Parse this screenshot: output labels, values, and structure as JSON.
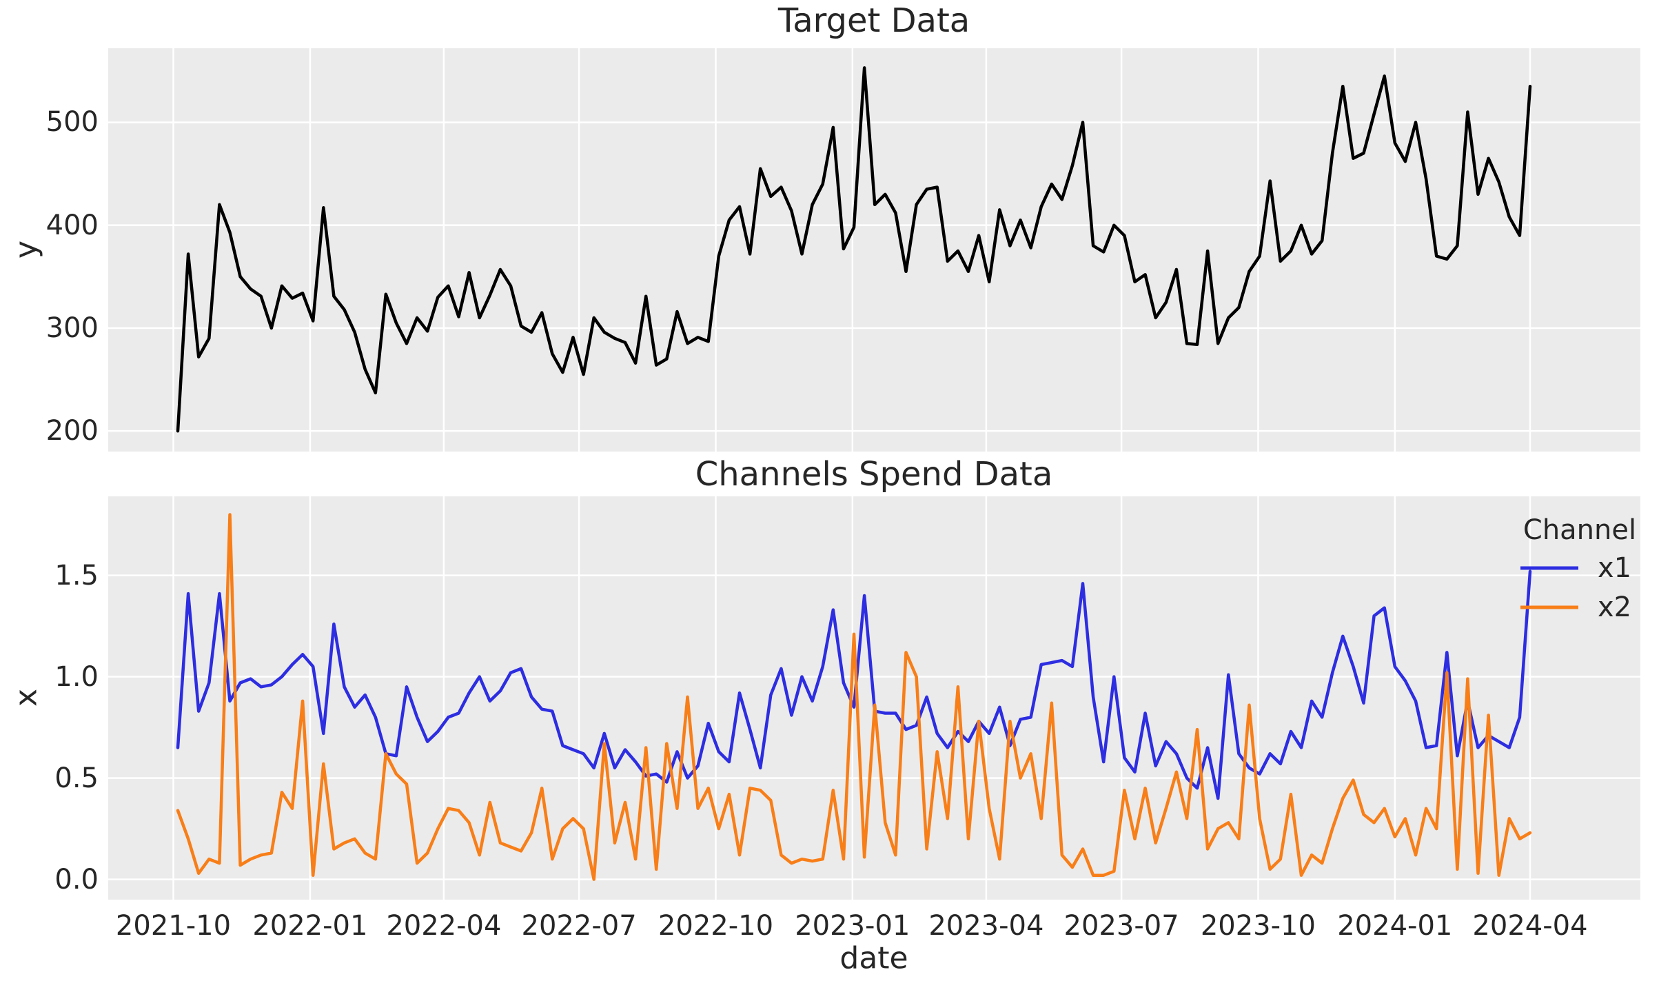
{
  "figure": {
    "background": "#ffffff",
    "axes_background": "#ebebeb",
    "grid_color": "#ffffff",
    "text_color": "#262626"
  },
  "chart_data": [
    {
      "type": "line",
      "title": "Target Data",
      "xlabel": "",
      "ylabel": "y",
      "grid": true,
      "x_start_date": "2021-10-04",
      "x_freq_days": 7,
      "n_points": 131,
      "ylim": [
        180,
        572
      ],
      "yticks": [
        {
          "value": 200,
          "label": "200"
        },
        {
          "value": 300,
          "label": "300"
        },
        {
          "value": 400,
          "label": "400"
        },
        {
          "value": 500,
          "label": "500"
        }
      ],
      "series": [
        {
          "name": "y",
          "color": "#000000",
          "values": [
            200,
            372,
            272,
            290,
            420,
            393,
            350,
            338,
            331,
            300,
            341,
            329,
            334,
            307,
            417,
            331,
            318,
            296,
            260,
            237,
            333,
            305,
            285,
            310,
            297,
            330,
            341,
            311,
            354,
            310,
            332,
            357,
            341,
            302,
            296,
            315,
            275,
            257,
            291,
            255,
            310,
            296,
            290,
            286,
            266,
            331,
            264,
            270,
            316,
            285,
            291,
            287,
            370,
            405,
            418,
            372,
            455,
            428,
            437,
            414,
            372,
            420,
            440,
            495,
            377,
            398,
            553,
            420,
            430,
            412,
            355,
            420,
            435,
            437,
            365,
            375,
            355,
            390,
            345,
            415,
            380,
            405,
            378,
            418,
            440,
            425,
            458,
            500,
            380,
            374,
            400,
            390,
            345,
            352,
            310,
            325,
            357,
            285,
            284,
            375,
            285,
            310,
            320,
            355,
            370,
            443,
            365,
            375,
            400,
            372,
            385,
            470,
            535,
            465,
            470,
            508,
            545,
            480,
            462,
            500,
            445,
            370,
            367,
            380,
            510,
            430,
            465,
            442,
            408,
            390,
            535
          ]
        }
      ]
    },
    {
      "type": "line",
      "title": "Channels Spend Data",
      "xlabel": "date",
      "ylabel": "x",
      "grid": true,
      "legend_title": "Channel",
      "legend_position": "upper right",
      "x_start_date": "2021-10-04",
      "x_freq_days": 7,
      "n_points": 131,
      "ylim": [
        -0.1,
        1.89
      ],
      "yticks": [
        {
          "value": 0.0,
          "label": "0.0"
        },
        {
          "value": 0.5,
          "label": "0.5"
        },
        {
          "value": 1.0,
          "label": "1.0"
        },
        {
          "value": 1.5,
          "label": "1.5"
        }
      ],
      "xticks": [
        {
          "date": "2021-10-01",
          "label": "2021-10"
        },
        {
          "date": "2022-01-01",
          "label": "2022-01"
        },
        {
          "date": "2022-04-01",
          "label": "2022-04"
        },
        {
          "date": "2022-07-01",
          "label": "2022-07"
        },
        {
          "date": "2022-10-01",
          "label": "2022-10"
        },
        {
          "date": "2023-01-01",
          "label": "2023-01"
        },
        {
          "date": "2023-04-01",
          "label": "2023-04"
        },
        {
          "date": "2023-07-01",
          "label": "2023-07"
        },
        {
          "date": "2023-10-01",
          "label": "2023-10"
        },
        {
          "date": "2024-01-01",
          "label": "2024-01"
        },
        {
          "date": "2024-04-01",
          "label": "2024-04"
        }
      ],
      "series": [
        {
          "name": "x1",
          "color": "#2d2de1",
          "values": [
            0.65,
            1.41,
            0.83,
            0.97,
            1.41,
            0.88,
            0.97,
            0.99,
            0.95,
            0.96,
            1.0,
            1.06,
            1.11,
            1.05,
            0.72,
            1.26,
            0.95,
            0.85,
            0.91,
            0.8,
            0.62,
            0.61,
            0.95,
            0.8,
            0.68,
            0.73,
            0.8,
            0.82,
            0.92,
            1.0,
            0.88,
            0.93,
            1.02,
            1.04,
            0.9,
            0.84,
            0.83,
            0.66,
            0.64,
            0.62,
            0.55,
            0.72,
            0.55,
            0.64,
            0.58,
            0.51,
            0.52,
            0.48,
            0.63,
            0.5,
            0.56,
            0.77,
            0.63,
            0.58,
            0.92,
            0.74,
            0.55,
            0.91,
            1.04,
            0.81,
            1.0,
            0.88,
            1.05,
            1.33,
            0.97,
            0.85,
            1.4,
            0.83,
            0.82,
            0.82,
            0.74,
            0.76,
            0.9,
            0.72,
            0.65,
            0.73,
            0.68,
            0.78,
            0.72,
            0.85,
            0.66,
            0.79,
            0.8,
            1.06,
            1.07,
            1.08,
            1.05,
            1.46,
            0.9,
            0.58,
            1.0,
            0.6,
            0.53,
            0.82,
            0.56,
            0.68,
            0.62,
            0.5,
            0.45,
            0.65,
            0.4,
            1.01,
            0.62,
            0.55,
            0.52,
            0.62,
            0.57,
            0.73,
            0.65,
            0.88,
            0.8,
            1.02,
            1.2,
            1.05,
            0.87,
            1.3,
            1.34,
            1.05,
            0.98,
            0.88,
            0.65,
            0.66,
            1.12,
            0.61,
            0.88,
            0.65,
            0.71,
            0.68,
            0.65,
            0.8,
            1.52
          ]
        },
        {
          "name": "x2",
          "color": "#f87e18",
          "values": [
            0.34,
            0.2,
            0.03,
            0.1,
            0.08,
            1.8,
            0.07,
            0.1,
            0.12,
            0.13,
            0.43,
            0.35,
            0.88,
            0.02,
            0.57,
            0.15,
            0.18,
            0.2,
            0.13,
            0.1,
            0.62,
            0.52,
            0.47,
            0.08,
            0.13,
            0.25,
            0.35,
            0.34,
            0.28,
            0.12,
            0.38,
            0.18,
            0.16,
            0.14,
            0.23,
            0.45,
            0.1,
            0.25,
            0.3,
            0.25,
            0.0,
            0.67,
            0.18,
            0.38,
            0.1,
            0.65,
            0.05,
            0.67,
            0.35,
            0.9,
            0.35,
            0.45,
            0.25,
            0.42,
            0.12,
            0.45,
            0.44,
            0.39,
            0.12,
            0.08,
            0.1,
            0.09,
            0.1,
            0.44,
            0.1,
            1.21,
            0.11,
            0.86,
            0.28,
            0.12,
            1.12,
            1.0,
            0.15,
            0.63,
            0.3,
            0.95,
            0.2,
            0.78,
            0.35,
            0.1,
            0.78,
            0.5,
            0.62,
            0.3,
            0.87,
            0.12,
            0.06,
            0.15,
            0.02,
            0.02,
            0.04,
            0.44,
            0.2,
            0.45,
            0.18,
            0.35,
            0.53,
            0.3,
            0.74,
            0.15,
            0.25,
            0.28,
            0.2,
            0.86,
            0.3,
            0.05,
            0.1,
            0.42,
            0.02,
            0.12,
            0.08,
            0.25,
            0.4,
            0.49,
            0.32,
            0.28,
            0.35,
            0.21,
            0.3,
            0.12,
            0.35,
            0.25,
            1.02,
            0.05,
            0.99,
            0.03,
            0.81,
            0.02,
            0.3,
            0.2,
            0.23
          ]
        }
      ]
    }
  ]
}
